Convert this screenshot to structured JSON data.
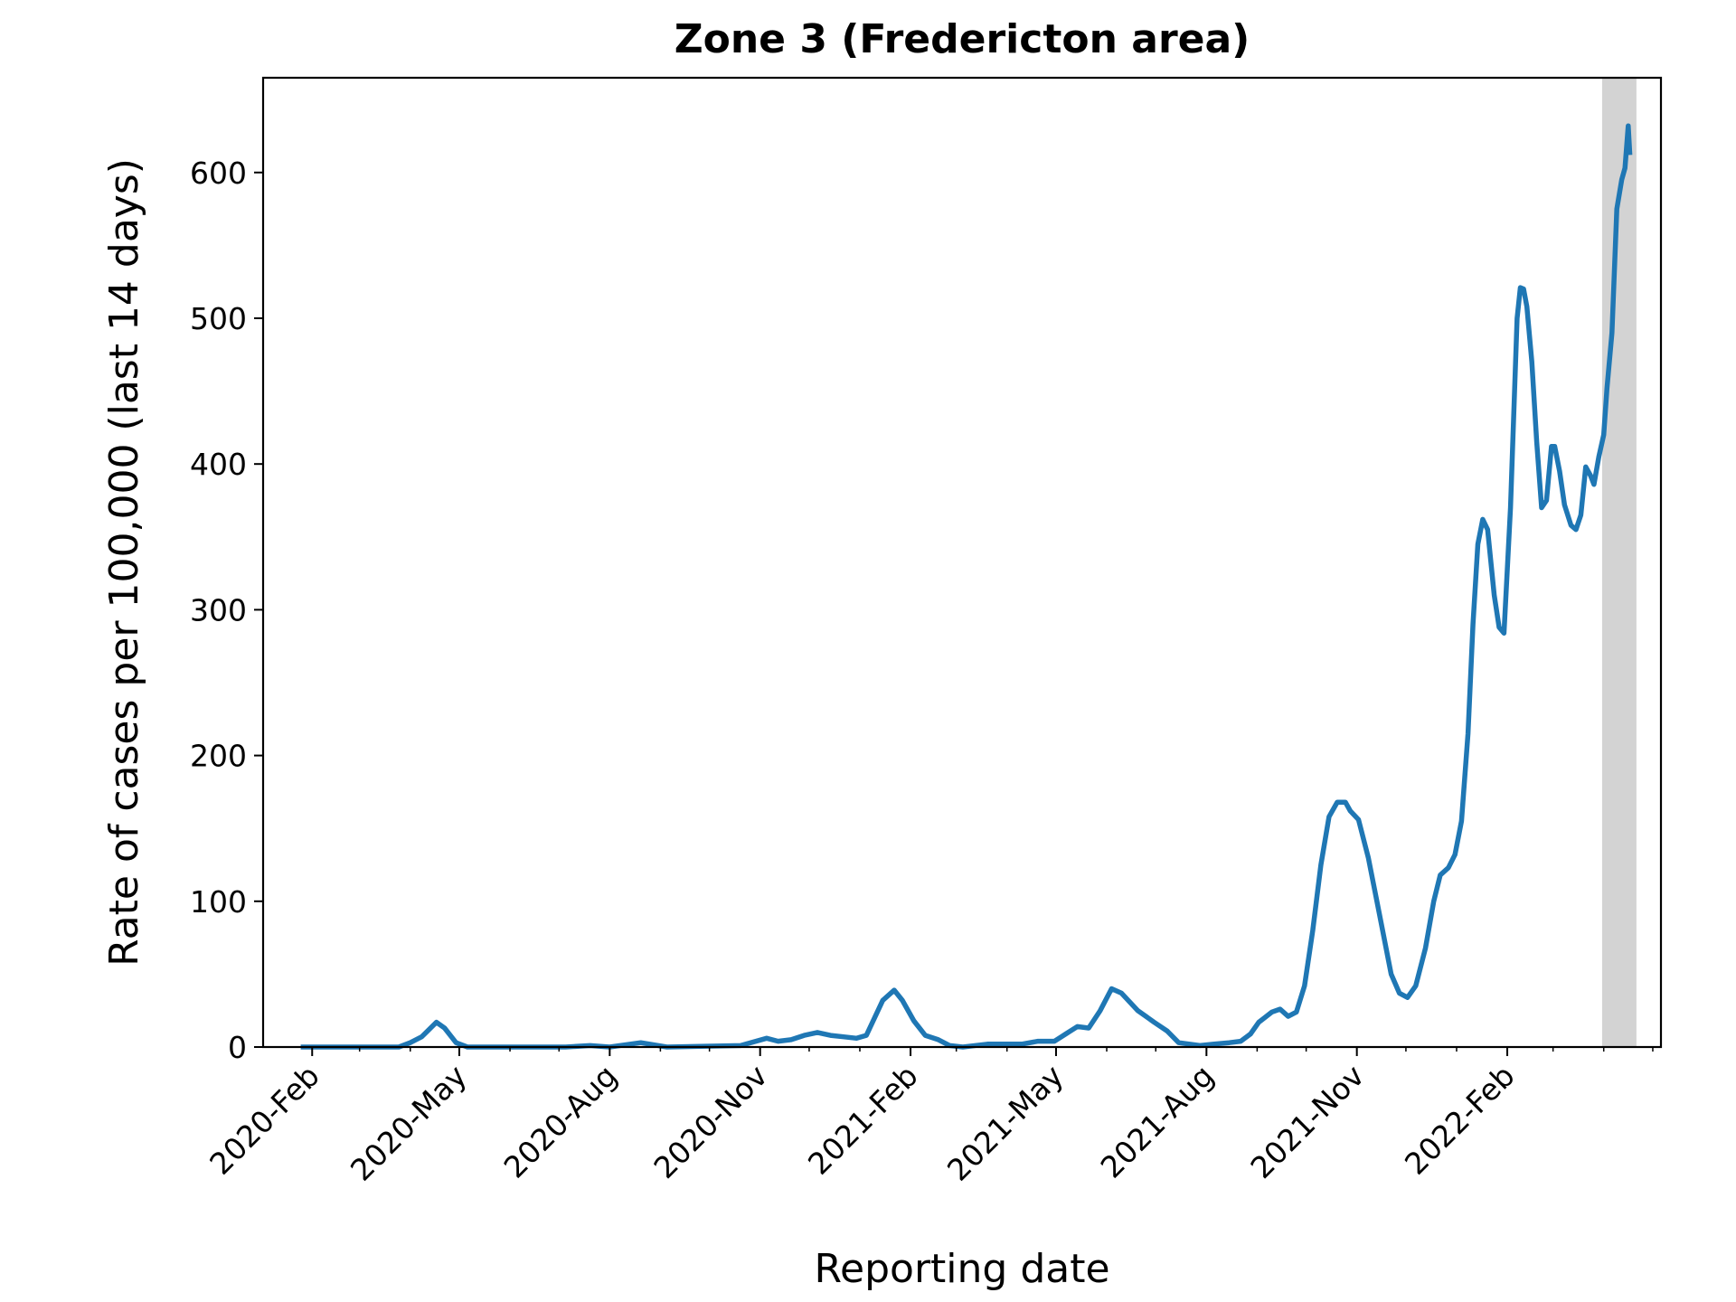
{
  "chart_data": {
    "type": "line",
    "title": "Zone 3 (Fredericton area)",
    "xlabel": "Reporting date",
    "ylabel": "Rate of cases per 100,000 (last 14 days)",
    "xlim": [
      "2020-01-02",
      "2022-05-06"
    ],
    "ylim": [
      0,
      665
    ],
    "grid": false,
    "legend": "none",
    "x_ticks": [
      {
        "date": "2020-02-01",
        "label": "2020-Feb"
      },
      {
        "date": "2020-05-01",
        "label": "2020-May"
      },
      {
        "date": "2020-08-01",
        "label": "2020-Aug"
      },
      {
        "date": "2020-11-01",
        "label": "2020-Nov"
      },
      {
        "date": "2021-02-01",
        "label": "2021-Feb"
      },
      {
        "date": "2021-05-01",
        "label": "2021-May"
      },
      {
        "date": "2021-08-01",
        "label": "2021-Aug"
      },
      {
        "date": "2021-11-01",
        "label": "2021-Nov"
      },
      {
        "date": "2022-02-01",
        "label": "2022-Feb"
      }
    ],
    "y_ticks": [
      {
        "value": 0,
        "label": "0"
      },
      {
        "value": 100,
        "label": "100"
      },
      {
        "value": 200,
        "label": "200"
      },
      {
        "value": 300,
        "label": "300"
      },
      {
        "value": 400,
        "label": "400"
      },
      {
        "value": 500,
        "label": "500"
      },
      {
        "value": 600,
        "label": "600"
      }
    ],
    "shaded_region": {
      "start": "2022-03-31",
      "end": "2022-04-21",
      "color": "#d3d3d3"
    },
    "series": [
      {
        "color": "#1f77b4",
        "points": [
          [
            "2020-01-25",
            0
          ],
          [
            "2020-03-25",
            0
          ],
          [
            "2020-04-01",
            3
          ],
          [
            "2020-04-08",
            7
          ],
          [
            "2020-04-17",
            17
          ],
          [
            "2020-04-22",
            13
          ],
          [
            "2020-04-29",
            3
          ],
          [
            "2020-05-06",
            0
          ],
          [
            "2020-07-05",
            0
          ],
          [
            "2020-07-20",
            1
          ],
          [
            "2020-08-01",
            0
          ],
          [
            "2020-08-20",
            3
          ],
          [
            "2020-09-05",
            0
          ],
          [
            "2020-10-20",
            1
          ],
          [
            "2020-11-05",
            6
          ],
          [
            "2020-11-12",
            4
          ],
          [
            "2020-11-20",
            5
          ],
          [
            "2020-11-28",
            8
          ],
          [
            "2020-12-06",
            10
          ],
          [
            "2020-12-14",
            8
          ],
          [
            "2020-12-22",
            7
          ],
          [
            "2020-12-30",
            6
          ],
          [
            "2021-01-05",
            8
          ],
          [
            "2021-01-15",
            32
          ],
          [
            "2021-01-22",
            39
          ],
          [
            "2021-01-27",
            32
          ],
          [
            "2021-02-03",
            18
          ],
          [
            "2021-02-10",
            8
          ],
          [
            "2021-02-18",
            5
          ],
          [
            "2021-02-25",
            1
          ],
          [
            "2021-03-05",
            0
          ],
          [
            "2021-03-20",
            2
          ],
          [
            "2021-04-10",
            2
          ],
          [
            "2021-04-20",
            4
          ],
          [
            "2021-04-30",
            4
          ],
          [
            "2021-05-07",
            9
          ],
          [
            "2021-05-14",
            14
          ],
          [
            "2021-05-21",
            13
          ],
          [
            "2021-05-28",
            25
          ],
          [
            "2021-06-04",
            40
          ],
          [
            "2021-06-10",
            37
          ],
          [
            "2021-06-20",
            25
          ],
          [
            "2021-06-30",
            17
          ],
          [
            "2021-07-08",
            11
          ],
          [
            "2021-07-15",
            3
          ],
          [
            "2021-07-28",
            1
          ],
          [
            "2021-08-05",
            2
          ],
          [
            "2021-08-15",
            3
          ],
          [
            "2021-08-22",
            4
          ],
          [
            "2021-08-28",
            9
          ],
          [
            "2021-09-02",
            17
          ],
          [
            "2021-09-10",
            24
          ],
          [
            "2021-09-15",
            26
          ],
          [
            "2021-09-20",
            21
          ],
          [
            "2021-09-25",
            24
          ],
          [
            "2021-09-30",
            42
          ],
          [
            "2021-10-05",
            80
          ],
          [
            "2021-10-10",
            125
          ],
          [
            "2021-10-15",
            158
          ],
          [
            "2021-10-20",
            168
          ],
          [
            "2021-10-25",
            168
          ],
          [
            "2021-10-28",
            162
          ],
          [
            "2021-11-02",
            156
          ],
          [
            "2021-11-08",
            130
          ],
          [
            "2021-11-15",
            90
          ],
          [
            "2021-11-22",
            50
          ],
          [
            "2021-11-27",
            37
          ],
          [
            "2021-12-02",
            34
          ],
          [
            "2021-12-07",
            42
          ],
          [
            "2021-12-13",
            68
          ],
          [
            "2021-12-18",
            100
          ],
          [
            "2021-12-22",
            118
          ],
          [
            "2021-12-27",
            123
          ],
          [
            "2021-12-31",
            132
          ],
          [
            "2022-01-04",
            155
          ],
          [
            "2022-01-08",
            215
          ],
          [
            "2022-01-11",
            290
          ],
          [
            "2022-01-14",
            345
          ],
          [
            "2022-01-17",
            362
          ],
          [
            "2022-01-20",
            355
          ],
          [
            "2022-01-24",
            310
          ],
          [
            "2022-01-27",
            288
          ],
          [
            "2022-01-30",
            284
          ],
          [
            "2022-02-03",
            370
          ],
          [
            "2022-02-07",
            500
          ],
          [
            "2022-02-09",
            521
          ],
          [
            "2022-02-11",
            520
          ],
          [
            "2022-02-13",
            508
          ],
          [
            "2022-02-16",
            470
          ],
          [
            "2022-02-19",
            415
          ],
          [
            "2022-02-22",
            370
          ],
          [
            "2022-02-25",
            375
          ],
          [
            "2022-02-28",
            412
          ],
          [
            "2022-03-02",
            412
          ],
          [
            "2022-03-05",
            395
          ],
          [
            "2022-03-08",
            372
          ],
          [
            "2022-03-12",
            358
          ],
          [
            "2022-03-15",
            355
          ],
          [
            "2022-03-18",
            365
          ],
          [
            "2022-03-21",
            398
          ],
          [
            "2022-03-24",
            392
          ],
          [
            "2022-03-26",
            386
          ],
          [
            "2022-03-29",
            405
          ],
          [
            "2022-04-01",
            420
          ],
          [
            "2022-04-03",
            452
          ],
          [
            "2022-04-06",
            490
          ],
          [
            "2022-04-09",
            575
          ],
          [
            "2022-04-12",
            595
          ],
          [
            "2022-04-14",
            603
          ],
          [
            "2022-04-16",
            632
          ],
          [
            "2022-04-17",
            612
          ]
        ]
      }
    ]
  }
}
